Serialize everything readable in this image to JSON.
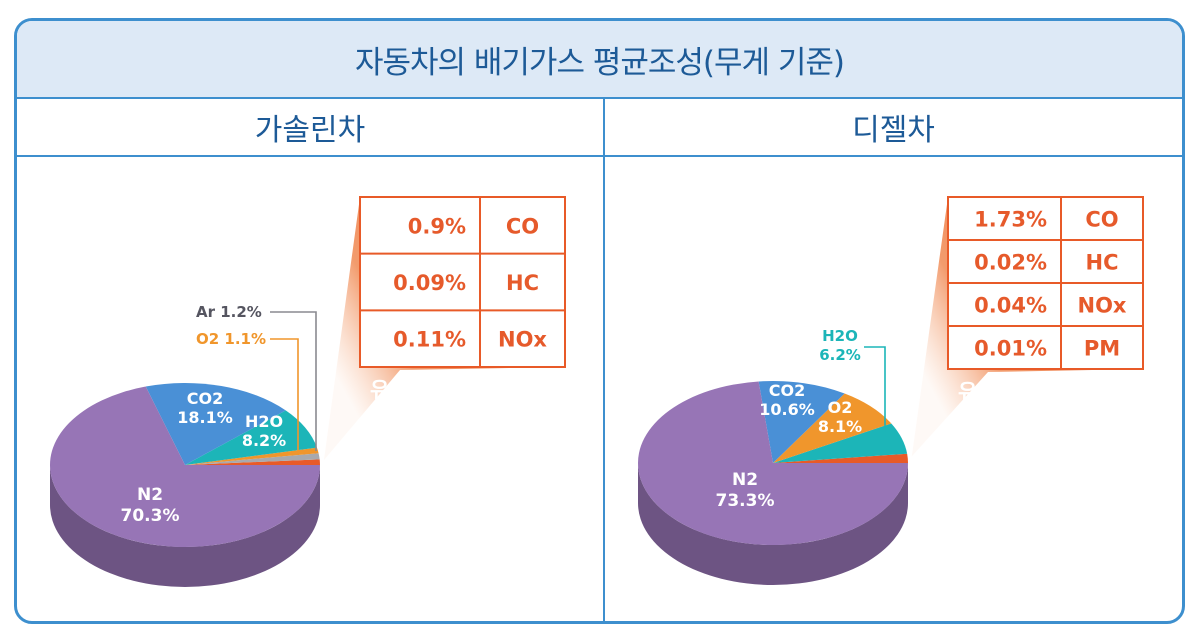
{
  "title": "자동차의 배기가스 평균조성(무게 기준)",
  "colors": {
    "border": "#3d8fce",
    "header_bg": "#dde9f6",
    "header_text": "#1d5a97",
    "n2": "#9775b6",
    "co2": "#4a90d6",
    "h2o": "#1cb5b8",
    "o2": "#f0962c",
    "ar": "#a9a9ad",
    "harmful": "#e85a28"
  },
  "chart_data": [
    {
      "type": "pie",
      "title": "가솔린차",
      "series": [
        {
          "name": "N2",
          "value": 70.3,
          "label": "N2",
          "value_label": "70.3%"
        },
        {
          "name": "CO2",
          "value": 18.1,
          "label": "CO2",
          "value_label": "18.1%"
        },
        {
          "name": "H2O",
          "value": 8.2,
          "label": "H2O",
          "value_label": "8.2%"
        },
        {
          "name": "O2",
          "value": 1.1,
          "label": "O2",
          "value_label": "1.1%"
        },
        {
          "name": "Ar",
          "value": 1.2,
          "label": "Ar",
          "value_label": "1.2%"
        },
        {
          "name": "유해물질",
          "value": 1.1
        }
      ],
      "harmful_label": "유해물질",
      "harmful_table": [
        {
          "value": "0.9%",
          "name": "CO"
        },
        {
          "value": "0.09%",
          "name": "HC"
        },
        {
          "value": "0.11%",
          "name": "NOx"
        }
      ]
    },
    {
      "type": "pie",
      "title": "디젤차",
      "series": [
        {
          "name": "N2",
          "value": 73.3,
          "label": "N2",
          "value_label": "73.3%"
        },
        {
          "name": "CO2",
          "value": 10.6,
          "label": "CO2",
          "value_label": "10.6%"
        },
        {
          "name": "O2",
          "value": 8.1,
          "label": "O2",
          "value_label": "8.1%"
        },
        {
          "name": "H2O",
          "value": 6.2,
          "label": "H2O",
          "value_label": "6.2%"
        },
        {
          "name": "유해물질",
          "value": 1.8
        }
      ],
      "harmful_label": "유해물질",
      "harmful_table": [
        {
          "value": "1.73%",
          "name": "CO"
        },
        {
          "value": "0.02%",
          "name": "HC"
        },
        {
          "value": "0.04%",
          "name": "NOx"
        },
        {
          "value": "0.01%",
          "name": "PM"
        }
      ]
    }
  ]
}
